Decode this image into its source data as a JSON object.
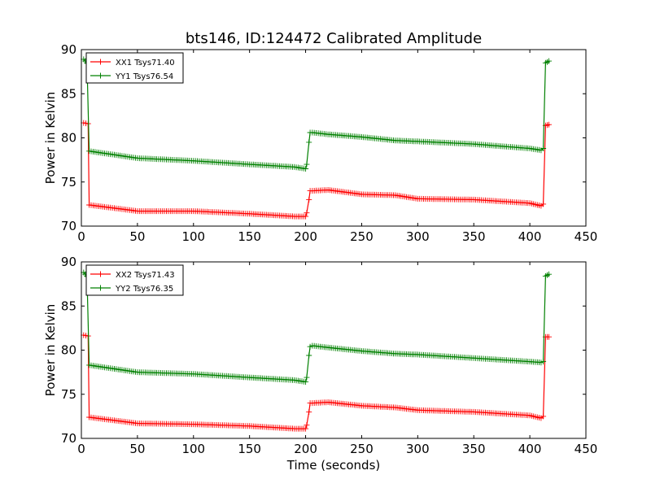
{
  "figure": {
    "title": "bts146, ID:124472 Calibrated Amplitude"
  },
  "chart_data": [
    {
      "type": "line",
      "ylabel": "Power in Kelvin",
      "xlabel": "",
      "xlim": [
        0,
        450
      ],
      "ylim": [
        70,
        90
      ],
      "xticks": [
        0,
        50,
        100,
        150,
        200,
        250,
        300,
        350,
        400,
        450
      ],
      "yticks": [
        70,
        75,
        80,
        85,
        90
      ],
      "legend_position": "top-left",
      "series": [
        {
          "name": "XX1 Tsys71.40",
          "color": "#ff0000",
          "marker": "plus",
          "x": [
            2,
            6,
            7,
            50,
            100,
            150,
            190,
            200,
            201,
            203,
            204,
            206,
            220,
            250,
            280,
            300,
            350,
            400,
            410,
            412,
            414,
            417
          ],
          "y": [
            81.7,
            81.6,
            72.4,
            71.7,
            71.7,
            71.4,
            71.1,
            71.1,
            71.5,
            73.0,
            74.0,
            74.0,
            74.1,
            73.6,
            73.5,
            73.1,
            73.0,
            72.6,
            72.3,
            72.5,
            81.4,
            81.5
          ]
        },
        {
          "name": "YY1 Tsys76.54",
          "color": "#008000",
          "marker": "plus",
          "x": [
            2,
            5,
            7,
            50,
            100,
            150,
            190,
            200,
            201,
            203,
            204,
            206,
            220,
            250,
            280,
            300,
            350,
            400,
            410,
            412,
            414,
            417
          ],
          "y": [
            88.9,
            88.5,
            78.5,
            77.7,
            77.4,
            77.0,
            76.7,
            76.5,
            77.0,
            79.5,
            80.6,
            80.6,
            80.4,
            80.1,
            79.7,
            79.6,
            79.3,
            78.8,
            78.6,
            78.8,
            88.5,
            88.7
          ]
        }
      ]
    },
    {
      "type": "line",
      "ylabel": "Power in Kelvin",
      "xlabel": "Time (seconds)",
      "xlim": [
        0,
        450
      ],
      "ylim": [
        70,
        90
      ],
      "xticks": [
        0,
        50,
        100,
        150,
        200,
        250,
        300,
        350,
        400,
        450
      ],
      "yticks": [
        70,
        75,
        80,
        85,
        90
      ],
      "legend_position": "top-left",
      "series": [
        {
          "name": "XX2 Tsys71.43",
          "color": "#ff0000",
          "marker": "plus",
          "x": [
            2,
            6,
            7,
            50,
            100,
            150,
            190,
            200,
            201,
            203,
            204,
            206,
            220,
            250,
            280,
            300,
            350,
            400,
            410,
            412,
            414,
            417
          ],
          "y": [
            81.7,
            81.6,
            72.4,
            71.7,
            71.6,
            71.4,
            71.1,
            71.1,
            71.5,
            73.0,
            74.0,
            74.0,
            74.1,
            73.7,
            73.5,
            73.2,
            73.0,
            72.6,
            72.3,
            72.5,
            81.5,
            81.5
          ]
        },
        {
          "name": "YY2 Tsys76.35",
          "color": "#008000",
          "marker": "plus",
          "x": [
            2,
            5,
            7,
            50,
            100,
            150,
            190,
            200,
            201,
            203,
            204,
            206,
            220,
            250,
            280,
            300,
            350,
            400,
            410,
            412,
            414,
            417
          ],
          "y": [
            88.8,
            88.4,
            78.3,
            77.5,
            77.3,
            76.9,
            76.6,
            76.4,
            76.9,
            79.4,
            80.4,
            80.5,
            80.3,
            79.9,
            79.6,
            79.5,
            79.1,
            78.7,
            78.6,
            78.7,
            88.4,
            88.6
          ]
        }
      ]
    }
  ]
}
